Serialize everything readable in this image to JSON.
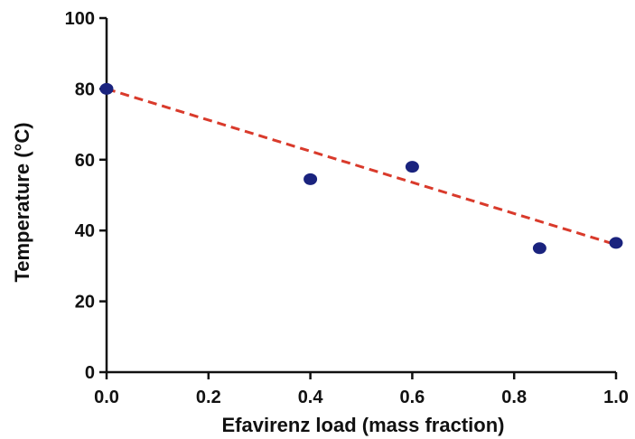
{
  "chart_data": {
    "type": "scatter",
    "title": "",
    "xlabel": "Efavirenz load (mass fraction)",
    "ylabel": "Temperature (°C)",
    "xlim": [
      0,
      1.0
    ],
    "ylim": [
      0,
      100
    ],
    "x_ticks": [
      "0.0",
      "0.2",
      "0.4",
      "0.6",
      "0.8",
      "1.0"
    ],
    "y_ticks": [
      "0",
      "20",
      "40",
      "60",
      "80",
      "100"
    ],
    "grid": false,
    "series": [
      {
        "points": [
          {
            "x": 0.0,
            "y": 80
          },
          {
            "x": 0.4,
            "y": 54.5
          },
          {
            "x": 0.6,
            "y": 58
          },
          {
            "x": 0.85,
            "y": 35
          },
          {
            "x": 1.0,
            "y": 36.5
          }
        ],
        "marker_color": "#1a237e"
      }
    ],
    "fit_line": {
      "style": "dashed",
      "color": "#d93a2b",
      "x": [
        0.0,
        1.0
      ],
      "y": [
        80,
        36
      ]
    }
  }
}
